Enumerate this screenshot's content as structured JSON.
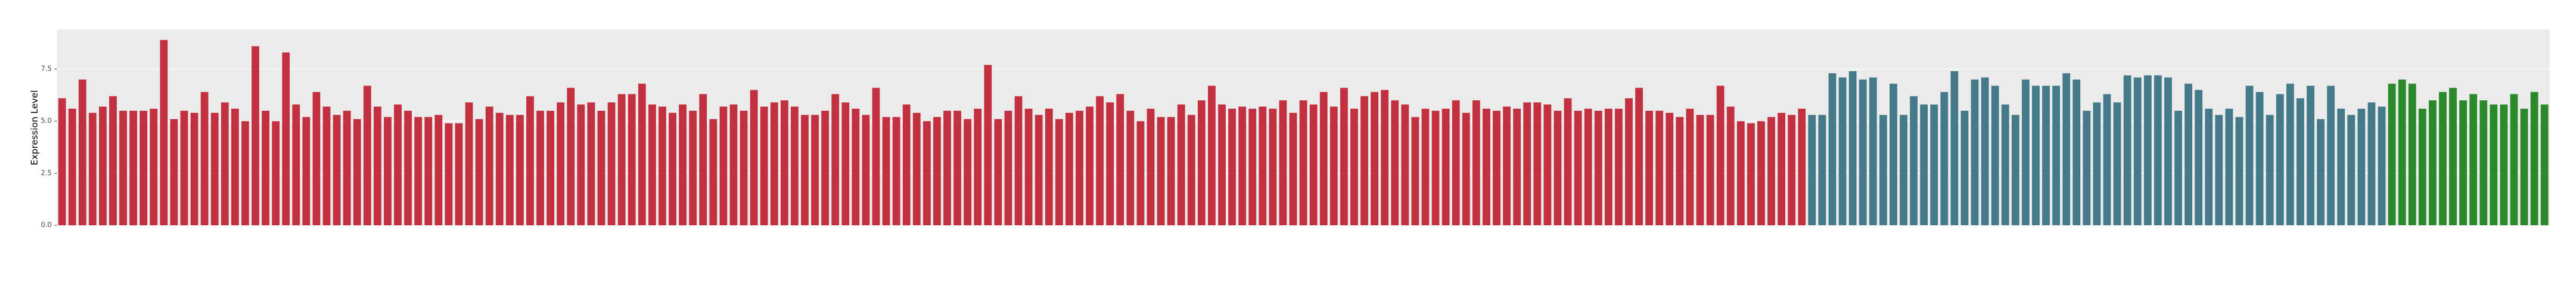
{
  "chart_data": {
    "type": "bar",
    "y_label": "Expression Level",
    "ylim": [
      0,
      9.4
    ],
    "yticks": [
      {
        "value": 0,
        "label": "0.0"
      },
      2.5,
      {
        "value": 5,
        "label": "5.0"
      },
      7.5
    ],
    "grid": true,
    "categories": [
      null,
      null,
      null,
      null,
      null,
      null,
      null,
      null,
      null,
      null,
      null,
      null,
      null,
      null,
      null,
      null,
      null,
      null,
      null,
      null,
      null,
      null,
      null,
      null,
      null,
      null,
      null,
      null,
      null,
      null,
      null,
      null,
      null,
      null,
      null,
      null,
      null,
      null,
      null,
      null,
      null,
      null,
      null,
      null,
      null,
      null,
      null,
      null,
      null,
      null,
      null,
      null,
      null,
      null,
      null,
      null,
      null,
      null,
      null,
      null,
      null,
      null,
      null,
      null,
      null,
      null,
      null,
      null,
      null,
      null,
      null,
      null,
      null,
      null,
      null,
      null,
      null,
      null,
      null,
      null,
      null,
      null,
      null,
      null,
      null,
      null,
      null,
      null,
      null,
      null,
      null,
      null,
      null,
      null,
      null,
      null,
      null,
      null,
      null,
      null,
      null,
      null,
      null,
      null,
      null,
      null,
      null,
      null,
      null,
      null,
      null,
      null,
      null,
      null,
      null,
      null,
      null,
      null,
      null,
      null,
      null,
      null,
      null,
      null,
      null,
      null,
      null,
      null,
      null,
      null,
      null,
      null,
      null,
      null,
      null,
      null,
      null,
      null,
      null,
      null,
      null,
      null,
      null,
      null,
      null,
      null,
      null,
      null,
      null,
      null,
      null,
      null,
      null,
      null,
      null,
      null,
      null,
      null,
      null,
      null,
      null,
      null,
      null,
      null,
      null,
      null,
      null,
      null,
      null,
      null,
      null,
      null,
      null,
      null,
      null,
      null,
      null,
      null,
      null,
      null,
      null,
      null,
      null,
      null,
      null,
      null,
      null,
      null,
      null,
      null,
      null,
      null,
      null,
      null,
      null,
      null,
      null,
      null,
      null,
      null,
      null,
      null,
      null,
      null,
      null,
      null,
      null,
      null,
      null,
      null,
      null,
      null,
      null,
      null,
      null,
      null,
      null,
      null,
      null,
      null,
      null,
      null,
      null,
      null,
      null,
      null,
      null,
      null,
      null,
      null,
      null,
      null,
      null,
      null,
      null,
      null,
      null,
      null,
      null,
      null,
      null,
      null,
      null,
      null,
      null
    ],
    "values": [
      6.1,
      5.6,
      7.0,
      5.4,
      5.7,
      6.2,
      5.5,
      5.5,
      5.5,
      5.6,
      8.9,
      5.1,
      5.5,
      5.4,
      6.4,
      5.4,
      5.9,
      5.6,
      5.0,
      8.6,
      5.5,
      5.0,
      8.3,
      5.8,
      5.2,
      6.4,
      5.7,
      5.3,
      5.5,
      5.1,
      6.7,
      5.7,
      5.2,
      5.8,
      5.5,
      5.2,
      5.2,
      5.3,
      4.9,
      4.9,
      5.9,
      5.1,
      5.7,
      5.4,
      5.3,
      5.3,
      6.2,
      5.5,
      5.5,
      5.9,
      6.6,
      5.8,
      5.9,
      5.5,
      5.9,
      6.3,
      6.3,
      6.8,
      5.8,
      5.7,
      5.4,
      5.8,
      5.5,
      6.3,
      5.1,
      5.7,
      5.8,
      5.5,
      6.5,
      5.7,
      5.9,
      6.0,
      5.7,
      5.3,
      5.3,
      5.5,
      6.3,
      5.9,
      5.6,
      5.3,
      6.6,
      5.2,
      5.2,
      5.8,
      5.4,
      5.0,
      5.2,
      5.5,
      5.5,
      5.1,
      5.6,
      7.7,
      5.1,
      5.5,
      6.2,
      5.6,
      5.3,
      5.6,
      5.1,
      5.4,
      5.5,
      5.7,
      6.2,
      5.9,
      6.3,
      5.5,
      5.0,
      5.6,
      5.2,
      5.2,
      5.8,
      5.3,
      6.0,
      6.7,
      5.8,
      5.6,
      5.7,
      5.6,
      5.7,
      5.6,
      6.0,
      5.4,
      6.0,
      5.8,
      6.4,
      5.7,
      6.6,
      5.6,
      6.2,
      6.4,
      6.5,
      6.0,
      5.8,
      5.2,
      5.6,
      5.5,
      5.6,
      6.0,
      5.4,
      6.0,
      5.6,
      5.5,
      5.7,
      5.6,
      5.9,
      5.9,
      5.8,
      5.5,
      6.1,
      5.5,
      5.6,
      5.5,
      5.6,
      5.6,
      6.1,
      6.6,
      5.5,
      5.5,
      5.4,
      5.2,
      5.6,
      5.3,
      5.3,
      6.7,
      5.7,
      5.0,
      4.9,
      5.0,
      5.2,
      5.4,
      5.3,
      5.6,
      5.3,
      5.3,
      7.3,
      7.1,
      7.4,
      7.0,
      7.1,
      5.3,
      6.8,
      5.3,
      6.2,
      5.8,
      5.8,
      6.4,
      7.4,
      5.5,
      7.0,
      7.1,
      6.7,
      5.8,
      5.3,
      7.0,
      6.7,
      6.7,
      6.7,
      7.3,
      7.0,
      5.5,
      5.9,
      6.3,
      5.9,
      7.2,
      7.1,
      7.2,
      7.2,
      7.1,
      5.5,
      6.8,
      6.5,
      5.6,
      5.3,
      5.6,
      5.2,
      6.7,
      6.4,
      5.3,
      6.3,
      6.8,
      6.1,
      6.7,
      5.1,
      6.7,
      5.6,
      5.3,
      5.6,
      5.9,
      5.7,
      6.8,
      7.0,
      6.8,
      5.6,
      6.0,
      6.4,
      6.6,
      6.0,
      6.3,
      6.0,
      5.8,
      5.8,
      6.3,
      5.6,
      6.4,
      5.8
    ],
    "colors": [
      "#c3303f",
      "#c3303f",
      "#c3303f",
      "#c3303f",
      "#c3303f",
      "#c3303f",
      "#c3303f",
      "#c3303f",
      "#c3303f",
      "#c3303f",
      "#c3303f",
      "#c3303f",
      "#c3303f",
      "#c3303f",
      "#c3303f",
      "#c3303f",
      "#c3303f",
      "#c3303f",
      "#c3303f",
      "#c3303f",
      "#c3303f",
      "#c3303f",
      "#c3303f",
      "#c3303f",
      "#c3303f",
      "#c3303f",
      "#c3303f",
      "#c3303f",
      "#c3303f",
      "#c3303f",
      "#c3303f",
      "#c3303f",
      "#c3303f",
      "#c3303f",
      "#c3303f",
      "#c3303f",
      "#c3303f",
      "#c3303f",
      "#c3303f",
      "#c3303f",
      "#c3303f",
      "#c3303f",
      "#c3303f",
      "#c3303f",
      "#c3303f",
      "#c3303f",
      "#c3303f",
      "#c3303f",
      "#c3303f",
      "#c3303f",
      "#c3303f",
      "#c3303f",
      "#c3303f",
      "#c3303f",
      "#c3303f",
      "#c3303f",
      "#c3303f",
      "#c3303f",
      "#c3303f",
      "#c3303f",
      "#c3303f",
      "#c3303f",
      "#c3303f",
      "#c3303f",
      "#c3303f",
      "#c3303f",
      "#c3303f",
      "#c3303f",
      "#c3303f",
      "#c3303f",
      "#c3303f",
      "#c3303f",
      "#c3303f",
      "#c3303f",
      "#c3303f",
      "#c3303f",
      "#c3303f",
      "#c3303f",
      "#c3303f",
      "#c3303f",
      "#c3303f",
      "#c3303f",
      "#c3303f",
      "#c3303f",
      "#c3303f",
      "#c3303f",
      "#c3303f",
      "#c3303f",
      "#c3303f",
      "#c3303f",
      "#c3303f",
      "#c3303f",
      "#c3303f",
      "#c3303f",
      "#c3303f",
      "#c3303f",
      "#c3303f",
      "#c3303f",
      "#c3303f",
      "#c3303f",
      "#c3303f",
      "#c3303f",
      "#c3303f",
      "#c3303f",
      "#c3303f",
      "#c3303f",
      "#c3303f",
      "#c3303f",
      "#c3303f",
      "#c3303f",
      "#c3303f",
      "#c3303f",
      "#c3303f",
      "#c3303f",
      "#c3303f",
      "#c3303f",
      "#c3303f",
      "#c3303f",
      "#c3303f",
      "#c3303f",
      "#c3303f",
      "#c3303f",
      "#c3303f",
      "#c3303f",
      "#c3303f",
      "#c3303f",
      "#c3303f",
      "#c3303f",
      "#c3303f",
      "#c3303f",
      "#c3303f",
      "#c3303f",
      "#c3303f",
      "#c3303f",
      "#c3303f",
      "#c3303f",
      "#c3303f",
      "#c3303f",
      "#c3303f",
      "#c3303f",
      "#c3303f",
      "#c3303f",
      "#c3303f",
      "#c3303f",
      "#c3303f",
      "#c3303f",
      "#c3303f",
      "#c3303f",
      "#c3303f",
      "#c3303f",
      "#c3303f",
      "#c3303f",
      "#c3303f",
      "#c3303f",
      "#c3303f",
      "#c3303f",
      "#c3303f",
      "#c3303f",
      "#c3303f",
      "#c3303f",
      "#c3303f",
      "#c3303f",
      "#c3303f",
      "#c3303f",
      "#c3303f",
      "#c3303f",
      "#c3303f",
      "#c3303f",
      "#c3303f",
      "#c3303f",
      "#c3303f",
      "#c3303f",
      "#447a8a",
      "#447a8a",
      "#447a8a",
      "#447a8a",
      "#447a8a",
      "#447a8a",
      "#447a8a",
      "#447a8a",
      "#447a8a",
      "#447a8a",
      "#447a8a",
      "#447a8a",
      "#447a8a",
      "#447a8a",
      "#447a8a",
      "#447a8a",
      "#447a8a",
      "#447a8a",
      "#447a8a",
      "#447a8a",
      "#447a8a",
      "#447a8a",
      "#447a8a",
      "#447a8a",
      "#447a8a",
      "#447a8a",
      "#447a8a",
      "#447a8a",
      "#447a8a",
      "#447a8a",
      "#447a8a",
      "#447a8a",
      "#447a8a",
      "#447a8a",
      "#447a8a",
      "#447a8a",
      "#447a8a",
      "#447a8a",
      "#447a8a",
      "#447a8a",
      "#447a8a",
      "#447a8a",
      "#447a8a",
      "#447a8a",
      "#447a8a",
      "#447a8a",
      "#447a8a",
      "#447a8a",
      "#447a8a",
      "#447a8a",
      "#447a8a",
      "#447a8a",
      "#447a8a",
      "#447a8a",
      "#447a8a",
      "#447a8a",
      "#447a8a",
      "#2b8a2b",
      "#2b8a2b",
      "#2b8a2b",
      "#2b8a2b",
      "#2b8a2b",
      "#2b8a2b",
      "#2b8a2b",
      "#2b8a2b",
      "#2b8a2b",
      "#2b8a2b",
      "#2b8a2b",
      "#2b8a2b",
      "#2b8a2b",
      "#2b8a2b",
      "#2b8a2b",
      "#2b8a2b"
    ]
  }
}
